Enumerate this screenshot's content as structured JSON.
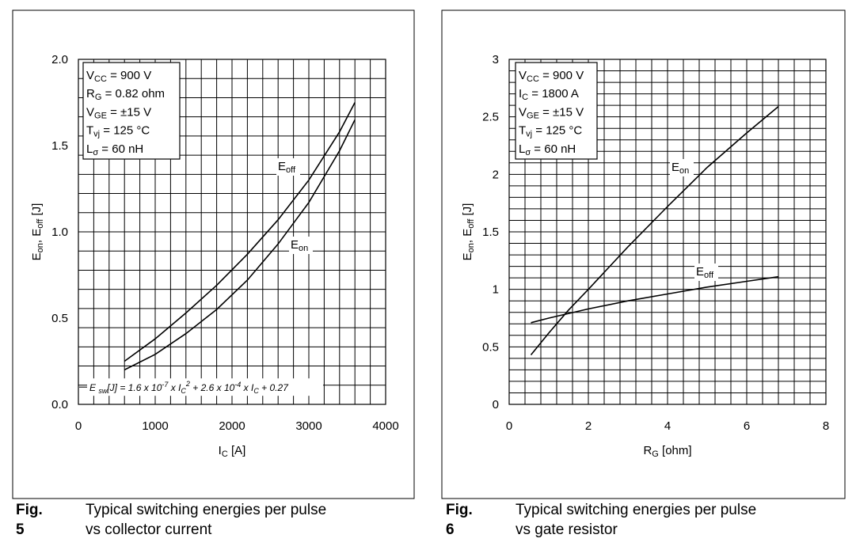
{
  "figures": [
    {
      "fig_label": "Fig. 5",
      "caption_line1": "Typical switching energies per pulse",
      "caption_line2": "vs collector current"
    },
    {
      "fig_label": "Fig. 6",
      "caption_line1": "Typical switching energies per pulse",
      "caption_line2": "vs gate resistor"
    }
  ],
  "chart_data": [
    {
      "type": "line",
      "xlabel": {
        "main": "I",
        "sub": "C",
        "rest": " [A]"
      },
      "ylabel": "E_on, E_off [J]",
      "xlim": [
        0,
        4000
      ],
      "ylim": [
        0,
        2.0
      ],
      "x_ticks": [
        "0",
        "1000",
        "2000",
        "3000",
        "4000"
      ],
      "y_ticks": [
        "0.0",
        "0.5",
        "1.0",
        "1.5",
        "2.0"
      ],
      "grid": true,
      "conditions": [
        {
          "main": "V",
          "sub": "CC",
          "rest": " = 900 V"
        },
        {
          "main": "R",
          "sub": "G",
          "rest": " = 0.82 ohm"
        },
        {
          "main": "V",
          "sub": "GE",
          "rest": " = ±15 V"
        },
        {
          "main": "T",
          "sub": "vj",
          "rest": " = 125 °C"
        },
        {
          "main": "L",
          "sub": "σ",
          "rest": " = 60 nH"
        }
      ],
      "formula": "E sw[J] = 1.6 x 10-7 x IC2 + 2.6 x 10-4 x IC + 0.27",
      "series": [
        {
          "name": "E_off",
          "label": {
            "main": "E",
            "sub": "off"
          },
          "x": [
            600,
            1000,
            1400,
            1800,
            2200,
            2600,
            3000,
            3400,
            3600
          ],
          "y": [
            0.25,
            0.38,
            0.53,
            0.69,
            0.87,
            1.07,
            1.3,
            1.58,
            1.75
          ]
        },
        {
          "name": "E_on",
          "label": {
            "main": "E",
            "sub": "on"
          },
          "x": [
            600,
            1000,
            1400,
            1800,
            2200,
            2600,
            3000,
            3400,
            3600
          ],
          "y": [
            0.2,
            0.29,
            0.41,
            0.55,
            0.72,
            0.93,
            1.17,
            1.47,
            1.65
          ]
        }
      ]
    },
    {
      "type": "line",
      "xlabel": {
        "main": "R",
        "sub": "G",
        "rest": " [ohm]"
      },
      "ylabel": "E_on, E_off [J]",
      "xlim": [
        0,
        8
      ],
      "ylim": [
        0,
        3
      ],
      "x_ticks": [
        "0",
        "2",
        "4",
        "6",
        "8"
      ],
      "y_ticks": [
        "0",
        "0.5",
        "1",
        "1.5",
        "2",
        "2.5",
        "3"
      ],
      "grid": true,
      "conditions": [
        {
          "main": "V",
          "sub": "CC",
          "rest": " = 900 V"
        },
        {
          "main": "I",
          "sub": "C",
          "rest": " = 1800 A"
        },
        {
          "main": "V",
          "sub": "GE",
          "rest": " = ±15 V"
        },
        {
          "main": "T",
          "sub": "vj",
          "rest": " = 125 °C"
        },
        {
          "main": "L",
          "sub": "σ",
          "rest": " = 60 nH"
        }
      ],
      "series": [
        {
          "name": "E_on",
          "label": {
            "main": "E",
            "sub": "on"
          },
          "x": [
            0.55,
            1.0,
            1.5,
            2.0,
            3.0,
            4.0,
            5.0,
            6.0,
            6.8
          ],
          "y": [
            0.43,
            0.62,
            0.82,
            1.0,
            1.37,
            1.72,
            2.06,
            2.36,
            2.59
          ]
        },
        {
          "name": "E_off",
          "label": {
            "main": "E",
            "sub": "off"
          },
          "x": [
            0.55,
            1.0,
            2.0,
            3.0,
            4.0,
            5.0,
            6.0,
            6.8
          ],
          "y": [
            0.71,
            0.75,
            0.83,
            0.9,
            0.96,
            1.02,
            1.07,
            1.11
          ]
        }
      ]
    }
  ]
}
